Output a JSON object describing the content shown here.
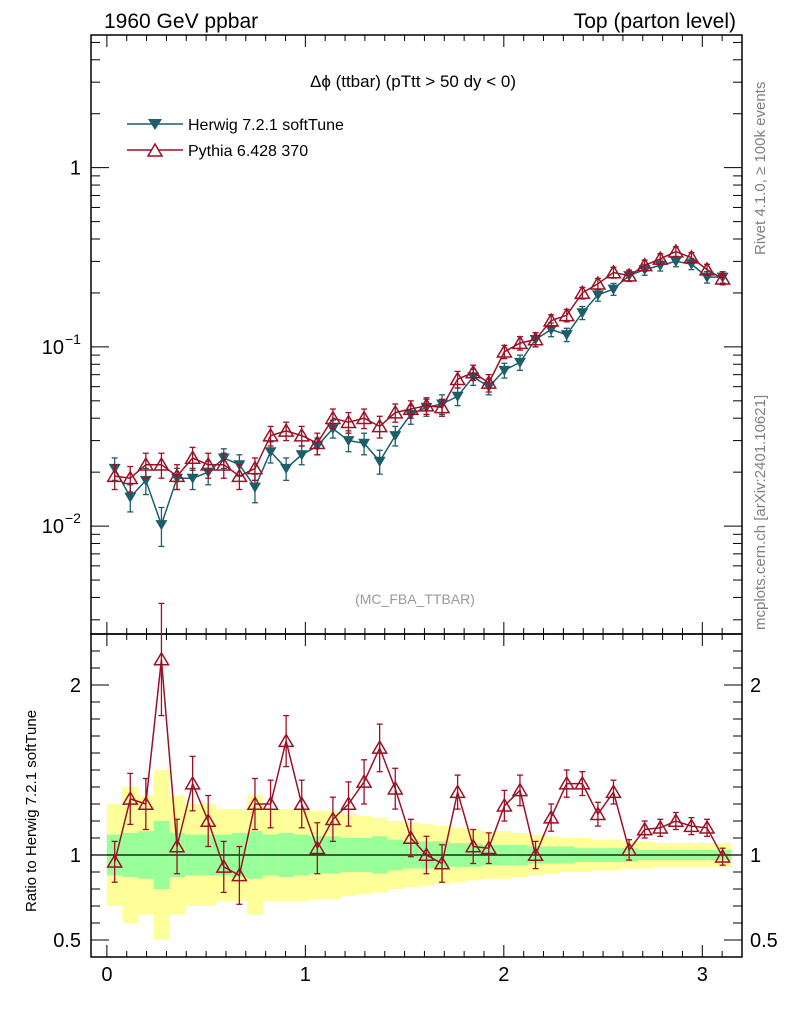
{
  "header": {
    "left_label": "1960 GeV ppbar",
    "right_label": "Top (parton level)"
  },
  "side": {
    "rivet": "Rivet 4.1.0, ≥ 100k events",
    "mcplots": "mcplots.cern.ch [arXiv:2401.10621]"
  },
  "plot": {
    "title": "Δϕ (ttbar) (pTtt > 50 dy < 0)",
    "analysis_tag": "(MC_FBA_TTBAR)",
    "ratio_ylabel": "Ratio to Herwig 7.2.1 softTune"
  },
  "colors": {
    "herwig": "#1c5f6a",
    "pythia": "#9b1126",
    "yellow": "#ffff99",
    "green": "#99ff99"
  },
  "chart_data": {
    "type": "line",
    "xlim": [
      -0.08,
      3.2
    ],
    "main_ylim": [
      0.0025,
      5.5
    ],
    "main_yscale": "log",
    "ratio_ylim": [
      0.4,
      2.3
    ],
    "x_ticks": [
      0,
      1,
      2,
      3
    ],
    "main_y_ticks": [
      {
        "value": 1,
        "label": "1"
      },
      {
        "value": 0.1,
        "label": "10",
        "exp": "−1"
      },
      {
        "value": 0.01,
        "label": "10",
        "exp": "−2"
      }
    ],
    "ratio_y_ticks": [
      {
        "value": 0.5,
        "label": "0.5"
      },
      {
        "value": 1,
        "label": "1"
      },
      {
        "value": 2,
        "label": "2"
      }
    ],
    "x": [
      0.0393,
      0.1178,
      0.1963,
      0.2749,
      0.3534,
      0.432,
      0.5105,
      0.589,
      0.6676,
      0.7461,
      0.8247,
      0.9032,
      0.9817,
      1.0603,
      1.1388,
      1.2174,
      1.2959,
      1.3744,
      1.453,
      1.5315,
      1.6101,
      1.6886,
      1.7671,
      1.8457,
      1.9242,
      2.0028,
      2.0813,
      2.1598,
      2.2384,
      2.3169,
      2.3955,
      2.474,
      2.5525,
      2.6311,
      2.7096,
      2.7882,
      2.8667,
      2.9452,
      3.0238,
      3.1023
    ],
    "series": [
      {
        "name": "Herwig 7.2.1 softTune",
        "marker": "triangle-down-filled",
        "values": [
          0.021,
          0.0145,
          0.018,
          0.0102,
          0.0185,
          0.0185,
          0.02,
          0.024,
          0.022,
          0.0165,
          0.026,
          0.021,
          0.025,
          0.028,
          0.035,
          0.03,
          0.029,
          0.023,
          0.032,
          0.042,
          0.046,
          0.048,
          0.053,
          0.068,
          0.06,
          0.074,
          0.082,
          0.11,
          0.125,
          0.117,
          0.155,
          0.195,
          0.21,
          0.25,
          0.27,
          0.285,
          0.3,
          0.29,
          0.245,
          0.245
        ],
        "errors": [
          0.003,
          0.0025,
          0.003,
          0.0025,
          0.0025,
          0.0025,
          0.003,
          0.003,
          0.003,
          0.003,
          0.0035,
          0.003,
          0.003,
          0.003,
          0.004,
          0.004,
          0.004,
          0.0035,
          0.004,
          0.005,
          0.005,
          0.006,
          0.006,
          0.007,
          0.006,
          0.007,
          0.008,
          0.01,
          0.011,
          0.01,
          0.013,
          0.015,
          0.016,
          0.018,
          0.019,
          0.02,
          0.02,
          0.02,
          0.018,
          0.018
        ]
      },
      {
        "name": "Pythia 6.428 370",
        "marker": "triangle-up-open",
        "values": [
          0.019,
          0.0185,
          0.022,
          0.022,
          0.019,
          0.024,
          0.022,
          0.022,
          0.019,
          0.021,
          0.032,
          0.034,
          0.032,
          0.029,
          0.04,
          0.038,
          0.04,
          0.036,
          0.043,
          0.045,
          0.047,
          0.046,
          0.066,
          0.072,
          0.063,
          0.094,
          0.105,
          0.11,
          0.14,
          0.15,
          0.2,
          0.225,
          0.26,
          0.25,
          0.285,
          0.31,
          0.34,
          0.315,
          0.27,
          0.24
        ],
        "errors": [
          0.003,
          0.003,
          0.0035,
          0.0035,
          0.003,
          0.0035,
          0.0035,
          0.0035,
          0.003,
          0.003,
          0.004,
          0.004,
          0.004,
          0.004,
          0.005,
          0.005,
          0.005,
          0.005,
          0.005,
          0.005,
          0.005,
          0.005,
          0.007,
          0.007,
          0.007,
          0.008,
          0.009,
          0.01,
          0.011,
          0.012,
          0.015,
          0.016,
          0.018,
          0.018,
          0.02,
          0.021,
          0.022,
          0.021,
          0.019,
          0.018
        ]
      }
    ],
    "ratio": {
      "reference": "Herwig 7.2.1 softTune",
      "values": [
        0.96,
        1.33,
        1.3,
        2.15,
        1.05,
        1.42,
        1.2,
        0.93,
        0.88,
        1.3,
        1.3,
        1.67,
        1.3,
        1.04,
        1.21,
        1.3,
        1.43,
        1.63,
        1.39,
        1.1,
        1.0,
        0.95,
        1.37,
        1.05,
        1.04,
        1.29,
        1.38,
        1.0,
        1.22,
        1.42,
        1.42,
        1.24,
        1.37,
        1.03,
        1.15,
        1.16,
        1.2,
        1.17,
        1.16,
        0.99
      ],
      "errors": [
        0.12,
        0.15,
        0.15,
        0.33,
        0.16,
        0.16,
        0.15,
        0.15,
        0.17,
        0.15,
        0.14,
        0.15,
        0.14,
        0.15,
        0.13,
        0.13,
        0.13,
        0.14,
        0.12,
        0.11,
        0.11,
        0.11,
        0.1,
        0.1,
        0.09,
        0.09,
        0.09,
        0.08,
        0.08,
        0.08,
        0.07,
        0.07,
        0.07,
        0.06,
        0.05,
        0.05,
        0.05,
        0.05,
        0.05,
        0.05
      ],
      "band_yellow": [
        0.3,
        0.4,
        0.35,
        0.5,
        0.35,
        0.3,
        0.3,
        0.27,
        0.27,
        0.35,
        0.27,
        0.27,
        0.27,
        0.26,
        0.26,
        0.24,
        0.23,
        0.22,
        0.2,
        0.19,
        0.18,
        0.17,
        0.16,
        0.15,
        0.14,
        0.14,
        0.13,
        0.12,
        0.11,
        0.1,
        0.1,
        0.09,
        0.09,
        0.08,
        0.08,
        0.07,
        0.07,
        0.07,
        0.07,
        0.07
      ],
      "band_green": [
        0.12,
        0.13,
        0.14,
        0.2,
        0.13,
        0.12,
        0.12,
        0.12,
        0.13,
        0.14,
        0.12,
        0.13,
        0.12,
        0.11,
        0.11,
        0.1,
        0.1,
        0.11,
        0.09,
        0.08,
        0.08,
        0.08,
        0.07,
        0.07,
        0.06,
        0.06,
        0.06,
        0.05,
        0.05,
        0.05,
        0.04,
        0.04,
        0.04,
        0.04,
        0.03,
        0.03,
        0.03,
        0.03,
        0.03,
        0.03
      ]
    }
  }
}
